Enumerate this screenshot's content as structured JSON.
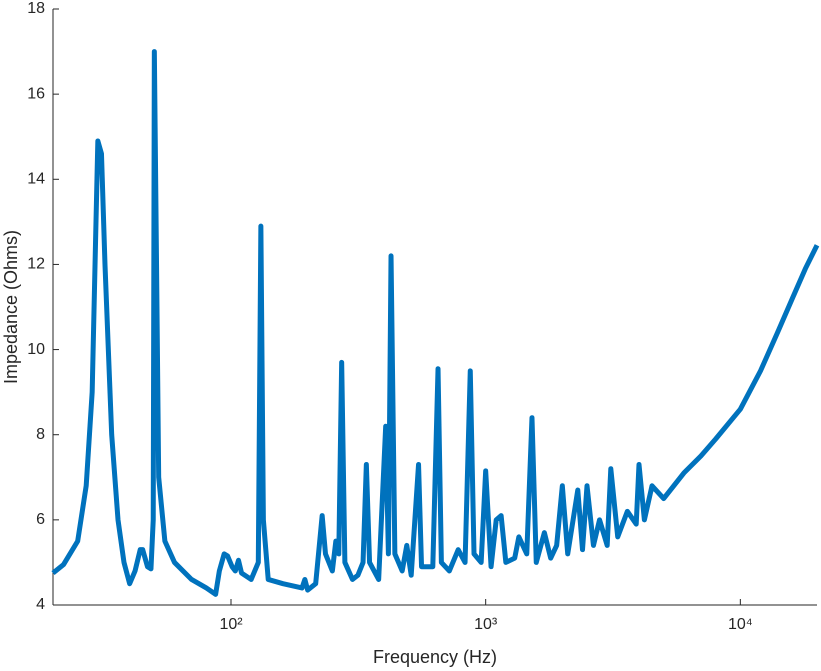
{
  "chart_data": {
    "type": "line",
    "xscale": "log",
    "x_label": "Frequency (Hz)",
    "y_label": "Impedance (Ohms)",
    "x": [
      20,
      22,
      25,
      27,
      28.5,
      29.5,
      30,
      31,
      32,
      34,
      36,
      38,
      40,
      42,
      44,
      45,
      47,
      48.5,
      49.5,
      50,
      51,
      52,
      55,
      60,
      70,
      80,
      87,
      90,
      94,
      97,
      101,
      104,
      107,
      110,
      120,
      128,
      131,
      134,
      140,
      160,
      190,
      195,
      200,
      215,
      228,
      235,
      250,
      258,
      265,
      272,
      280,
      300,
      315,
      330,
      340,
      350,
      380,
      405,
      415,
      425,
      440,
      470,
      490,
      510,
      545,
      560,
      620,
      650,
      670,
      720,
      780,
      830,
      870,
      900,
      960,
      1000,
      1050,
      1100,
      1150,
      1200,
      1300,
      1350,
      1450,
      1520,
      1580,
      1700,
      1800,
      1900,
      2000,
      2100,
      2300,
      2400,
      2500,
      2650,
      2800,
      3000,
      3100,
      3300,
      3600,
      3900,
      4000,
      4200,
      4500,
      5000,
      6000,
      7000,
      8000,
      10000,
      12000,
      14000,
      16000,
      18000,
      20000
    ],
    "series": [
      {
        "name": "Impedance",
        "color": "#0072bd",
        "values": [
          4.75,
          4.95,
          5.5,
          6.8,
          9,
          13,
          14.9,
          14.6,
          12,
          8,
          6,
          5,
          4.5,
          4.8,
          5.3,
          5.3,
          4.9,
          4.85,
          6,
          17,
          12,
          7,
          5.5,
          5,
          4.6,
          4.4,
          4.25,
          4.8,
          5.2,
          5.15,
          4.9,
          4.8,
          5.05,
          4.75,
          4.6,
          5,
          12.9,
          6,
          4.6,
          4.5,
          4.4,
          4.6,
          4.35,
          4.5,
          6.1,
          5.2,
          4.8,
          5.5,
          5.2,
          9.7,
          5,
          4.6,
          4.7,
          5,
          7.3,
          5,
          4.6,
          8.2,
          5.2,
          12.2,
          5.2,
          4.8,
          5.4,
          4.7,
          7.3,
          4.9,
          4.9,
          9.55,
          5,
          4.8,
          5.3,
          5,
          9.5,
          5.2,
          5,
          7.15,
          4.9,
          6,
          6.1,
          5,
          5.1,
          5.6,
          5.2,
          8.4,
          5,
          5.7,
          5.1,
          5.4,
          6.8,
          5.2,
          6.7,
          5.3,
          6.8,
          5.4,
          6,
          5.4,
          7.2,
          5.6,
          6.2,
          5.9,
          7.3,
          6,
          6.8,
          6.5,
          7.1,
          7.5,
          7.9,
          8.6,
          9.5,
          10.4,
          11.2,
          11.9,
          12.45
        ]
      }
    ],
    "xlim": [
      20,
      20000
    ],
    "xticks": [
      {
        "value": 100,
        "label": "10²"
      },
      {
        "value": 1000,
        "label": "10³"
      },
      {
        "value": 10000,
        "label": "10⁴"
      }
    ],
    "ylim": [
      4,
      18
    ],
    "yticks": [
      4,
      6,
      8,
      10,
      12,
      14,
      16,
      18
    ]
  }
}
